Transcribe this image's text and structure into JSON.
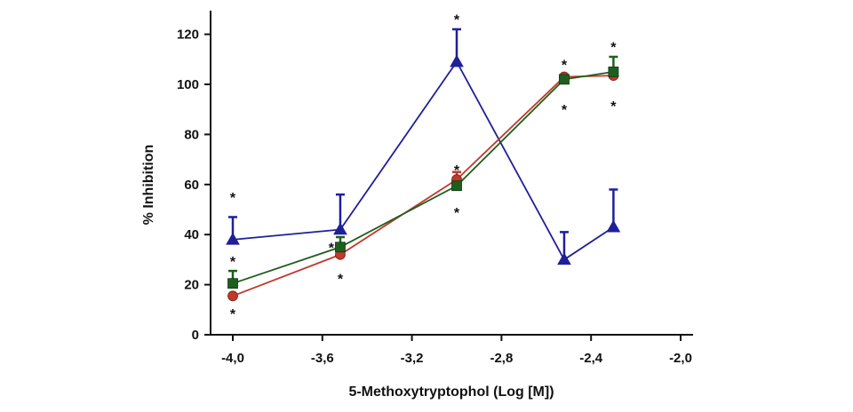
{
  "chart_data": {
    "type": "line",
    "xlabel": "5-Methoxytryptophol  (Log [M])",
    "ylabel": "% Inhibition",
    "xlim": [
      -4.0,
      -2.0
    ],
    "ylim": [
      0,
      130
    ],
    "x_ticks": [
      -4.0,
      -3.6,
      -3.2,
      -2.8,
      -2.4,
      -2.0
    ],
    "x_tick_labels": [
      "-4,0",
      "-3,6",
      "-3,2",
      "-2,8",
      "-2,4",
      "-2,0"
    ],
    "y_ticks": [
      0,
      20,
      40,
      60,
      80,
      100,
      120
    ],
    "y_tick_labels": [
      "0",
      "20",
      "40",
      "60",
      "80",
      "100",
      "120"
    ],
    "grid": false,
    "series": [
      {
        "marker": "triangle",
        "color": "#1f1f9a",
        "x": [
          -4.0,
          -3.52,
          -3.0,
          -2.52,
          -2.3
        ],
        "y": [
          38,
          42,
          109,
          30,
          43
        ],
        "error": [
          9,
          14,
          13,
          11,
          15
        ]
      },
      {
        "marker": "circle",
        "color": "#c0392b",
        "x": [
          -4.0,
          -3.52,
          -3.0,
          -2.52,
          -2.3
        ],
        "y": [
          15.5,
          32,
          62,
          103,
          103.5
        ],
        "error": [
          0,
          0,
          3,
          0,
          0
        ]
      },
      {
        "marker": "square",
        "color": "#1e5e1e",
        "x": [
          -4.0,
          -3.52,
          -3.0,
          -2.52,
          -2.3
        ],
        "y": [
          20.5,
          35,
          59.5,
          102,
          105
        ],
        "error": [
          5,
          4,
          0,
          0,
          6
        ]
      }
    ],
    "significance_marks": [
      {
        "x": -4.0,
        "y": 55,
        "text": "*"
      },
      {
        "x": -4.0,
        "y": 29.5,
        "text": "*"
      },
      {
        "x": -4.0,
        "y": 8.5,
        "text": "*"
      },
      {
        "x": -3.56,
        "y": 35,
        "text": "*"
      },
      {
        "x": -3.52,
        "y": 22.5,
        "text": "*"
      },
      {
        "x": -3.0,
        "y": 126,
        "text": "*"
      },
      {
        "x": -3.0,
        "y": 66,
        "text": "*"
      },
      {
        "x": -3.0,
        "y": 49,
        "text": "*"
      },
      {
        "x": -2.52,
        "y": 108,
        "text": "*"
      },
      {
        "x": -2.52,
        "y": 90,
        "text": "*"
      },
      {
        "x": -2.3,
        "y": 115,
        "text": "*"
      },
      {
        "x": -2.3,
        "y": 91.5,
        "text": "*"
      }
    ]
  }
}
